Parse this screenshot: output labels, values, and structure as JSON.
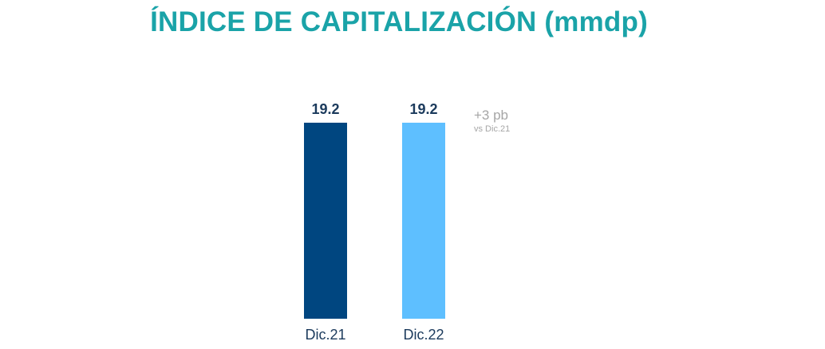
{
  "chart_data": {
    "type": "bar",
    "title": "ÍNDICE DE CAPITALIZACIÓN (mmdp)",
    "categories": [
      "Dic.21",
      "Dic.22"
    ],
    "values": [
      19.2,
      19.2
    ],
    "value_labels": [
      "19.2",
      "19.2"
    ],
    "colors": [
      "#004680",
      "#5ebfff"
    ],
    "ylim": [
      0,
      19.2
    ],
    "xlabel": "",
    "ylabel": "",
    "grid": false,
    "annotation": {
      "main": "+3 pb",
      "sub": "vs Dic.21"
    }
  }
}
